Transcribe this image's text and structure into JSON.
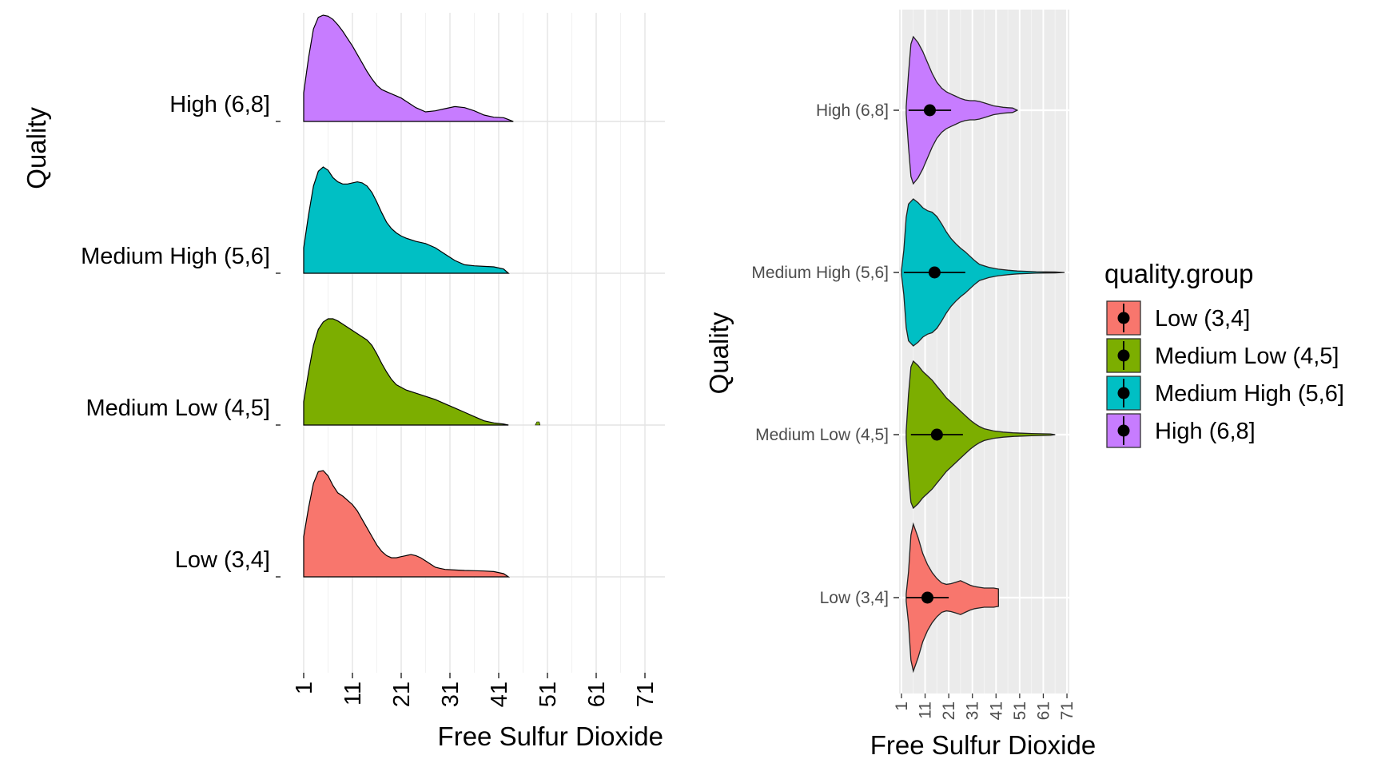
{
  "chart_data": [
    {
      "type": "ridgeline",
      "xlabel": "Free Sulfur Dioxide",
      "ylabel": "Quality",
      "xlim": [
        1,
        74
      ],
      "x_ticks": [
        1,
        11,
        21,
        31,
        41,
        51,
        61,
        71
      ],
      "x_tick_labels": [
        "1",
        "11",
        "21",
        "31",
        "41",
        "51",
        "61",
        "71"
      ],
      "categories": [
        "Low (3,4]",
        "Medium Low (4,5]",
        "Medium High (5,6]",
        "High (6,8]"
      ],
      "grid": true,
      "series": [
        {
          "category": "Low (3,4]",
          "color": "#F8766D",
          "x": [
            1,
            2,
            3,
            4,
            5,
            6,
            7,
            8,
            9,
            10,
            11,
            12,
            13,
            14,
            15,
            16,
            17,
            18,
            19,
            20,
            21,
            22,
            23,
            24,
            25,
            26,
            27,
            28,
            29,
            30,
            32,
            34,
            36,
            38,
            40,
            42,
            43
          ],
          "y": [
            0.38,
            0.65,
            0.88,
            0.99,
            1.0,
            0.95,
            0.86,
            0.79,
            0.76,
            0.72,
            0.68,
            0.62,
            0.54,
            0.46,
            0.38,
            0.3,
            0.24,
            0.2,
            0.18,
            0.18,
            0.19,
            0.2,
            0.21,
            0.2,
            0.18,
            0.15,
            0.12,
            0.09,
            0.08,
            0.07,
            0.065,
            0.06,
            0.058,
            0.055,
            0.05,
            0.03,
            0.0
          ]
        },
        {
          "category": "Medium Low (4,5]",
          "color": "#7CAE00",
          "x": [
            1,
            2,
            3,
            4,
            5,
            6,
            7,
            8,
            9,
            10,
            11,
            12,
            13,
            14,
            15,
            16,
            17,
            18,
            19,
            20,
            22,
            24,
            26,
            28,
            30,
            32,
            34,
            36,
            38,
            40,
            42,
            43
          ],
          "y": [
            0.22,
            0.5,
            0.75,
            0.9,
            0.97,
            1.0,
            1.0,
            0.98,
            0.95,
            0.92,
            0.89,
            0.86,
            0.83,
            0.8,
            0.75,
            0.67,
            0.58,
            0.5,
            0.43,
            0.38,
            0.33,
            0.3,
            0.27,
            0.24,
            0.2,
            0.16,
            0.12,
            0.08,
            0.04,
            0.02,
            0.01,
            0.0
          ]
        },
        {
          "category": "Medium High (5,6]",
          "color": "#00BFC4",
          "x": [
            1,
            2,
            3,
            4,
            5,
            6,
            7,
            8,
            9,
            10,
            11,
            12,
            13,
            14,
            15,
            16,
            17,
            18,
            19,
            20,
            21,
            22,
            24,
            26,
            28,
            30,
            32,
            34,
            36,
            38,
            40,
            42,
            43
          ],
          "y": [
            0.24,
            0.55,
            0.82,
            0.96,
            1.0,
            0.97,
            0.9,
            0.86,
            0.84,
            0.84,
            0.85,
            0.86,
            0.85,
            0.82,
            0.76,
            0.67,
            0.57,
            0.48,
            0.42,
            0.38,
            0.35,
            0.33,
            0.3,
            0.28,
            0.24,
            0.18,
            0.12,
            0.08,
            0.07,
            0.065,
            0.06,
            0.04,
            0.0
          ]
        },
        {
          "category": "High (6,8]",
          "color": "#C77CFF",
          "x": [
            1,
            2,
            3,
            4,
            5,
            6,
            7,
            8,
            9,
            10,
            11,
            12,
            13,
            14,
            15,
            16,
            17,
            18,
            19,
            20,
            21,
            22,
            24,
            26,
            28,
            30,
            32,
            34,
            36,
            38,
            40,
            42,
            44
          ],
          "y": [
            0.27,
            0.6,
            0.87,
            0.98,
            1.0,
            0.99,
            0.96,
            0.91,
            0.85,
            0.78,
            0.71,
            0.63,
            0.55,
            0.47,
            0.4,
            0.34,
            0.3,
            0.28,
            0.26,
            0.24,
            0.22,
            0.19,
            0.13,
            0.09,
            0.1,
            0.12,
            0.14,
            0.13,
            0.1,
            0.06,
            0.04,
            0.035,
            0.0
          ]
        }
      ]
    },
    {
      "type": "violin",
      "xlabel": "Free Sulfur Dioxide",
      "ylabel": "Quality",
      "xlim": [
        0,
        72
      ],
      "x_ticks": [
        1,
        11,
        21,
        31,
        41,
        51,
        61,
        71
      ],
      "x_tick_labels": [
        "1",
        "11",
        "21",
        "31",
        "41",
        "51",
        "61",
        "71"
      ],
      "categories": [
        "Low (3,4]",
        "Medium Low (4,5]",
        "Medium High (5,6]",
        "High (6,8]"
      ],
      "background": "#EBEBEB",
      "legend_title": "quality.group",
      "legend_position": "right",
      "legend_entries": [
        "Low (3,4]",
        "Medium Low (4,5]",
        "Medium High (5,6]",
        "High (6,8]"
      ],
      "series": [
        {
          "category": "Low (3,4]",
          "color": "#F8766D",
          "mean": 12,
          "se_low": 3,
          "se_high": 21,
          "x": [
            3,
            4,
            5,
            6,
            8,
            10,
            12,
            14,
            16,
            18,
            20,
            22,
            24,
            26,
            28,
            30,
            32,
            34,
            36,
            38,
            40,
            42
          ],
          "half_width": [
            0.05,
            0.35,
            0.85,
            1.0,
            0.82,
            0.6,
            0.45,
            0.34,
            0.26,
            0.2,
            0.18,
            0.19,
            0.21,
            0.23,
            0.2,
            0.17,
            0.15,
            0.14,
            0.13,
            0.13,
            0.13,
            0.12
          ]
        },
        {
          "category": "Medium Low (4,5]",
          "color": "#7CAE00",
          "mean": 16,
          "se_low": 5,
          "se_high": 27,
          "x": [
            3,
            4,
            5,
            6,
            8,
            10,
            12,
            14,
            16,
            18,
            20,
            22,
            24,
            26,
            28,
            30,
            32,
            34,
            36,
            40,
            44,
            48,
            52,
            56,
            60,
            64,
            66
          ],
          "half_width": [
            0.05,
            0.55,
            0.92,
            1.0,
            0.94,
            0.86,
            0.8,
            0.74,
            0.66,
            0.58,
            0.5,
            0.44,
            0.38,
            0.32,
            0.26,
            0.2,
            0.15,
            0.11,
            0.08,
            0.05,
            0.035,
            0.025,
            0.02,
            0.015,
            0.012,
            0.01,
            0.0
          ]
        },
        {
          "category": "Medium High (5,6]",
          "color": "#00BFC4",
          "mean": 15,
          "se_low": 2,
          "se_high": 28,
          "x": [
            1,
            2,
            3,
            4,
            6,
            8,
            10,
            12,
            14,
            16,
            18,
            20,
            22,
            24,
            26,
            28,
            30,
            32,
            34,
            38,
            42,
            46,
            50,
            54,
            58,
            62,
            66,
            70
          ],
          "half_width": [
            0.03,
            0.3,
            0.75,
            0.93,
            1.0,
            0.95,
            0.88,
            0.84,
            0.82,
            0.76,
            0.66,
            0.55,
            0.46,
            0.39,
            0.33,
            0.28,
            0.22,
            0.16,
            0.11,
            0.07,
            0.045,
            0.03,
            0.02,
            0.015,
            0.01,
            0.008,
            0.006,
            0.0
          ]
        },
        {
          "category": "High (6,8]",
          "color": "#C77CFF",
          "mean": 13,
          "se_low": 4,
          "se_high": 22,
          "x": [
            3,
            4,
            5,
            6,
            8,
            10,
            12,
            14,
            16,
            18,
            20,
            22,
            24,
            26,
            28,
            30,
            32,
            34,
            36,
            38,
            40,
            42,
            44,
            46,
            48,
            50
          ],
          "half_width": [
            0.05,
            0.5,
            0.9,
            1.0,
            0.92,
            0.8,
            0.65,
            0.5,
            0.38,
            0.3,
            0.25,
            0.22,
            0.19,
            0.16,
            0.14,
            0.13,
            0.13,
            0.12,
            0.1,
            0.08,
            0.06,
            0.05,
            0.04,
            0.035,
            0.03,
            0.0
          ]
        }
      ]
    }
  ]
}
